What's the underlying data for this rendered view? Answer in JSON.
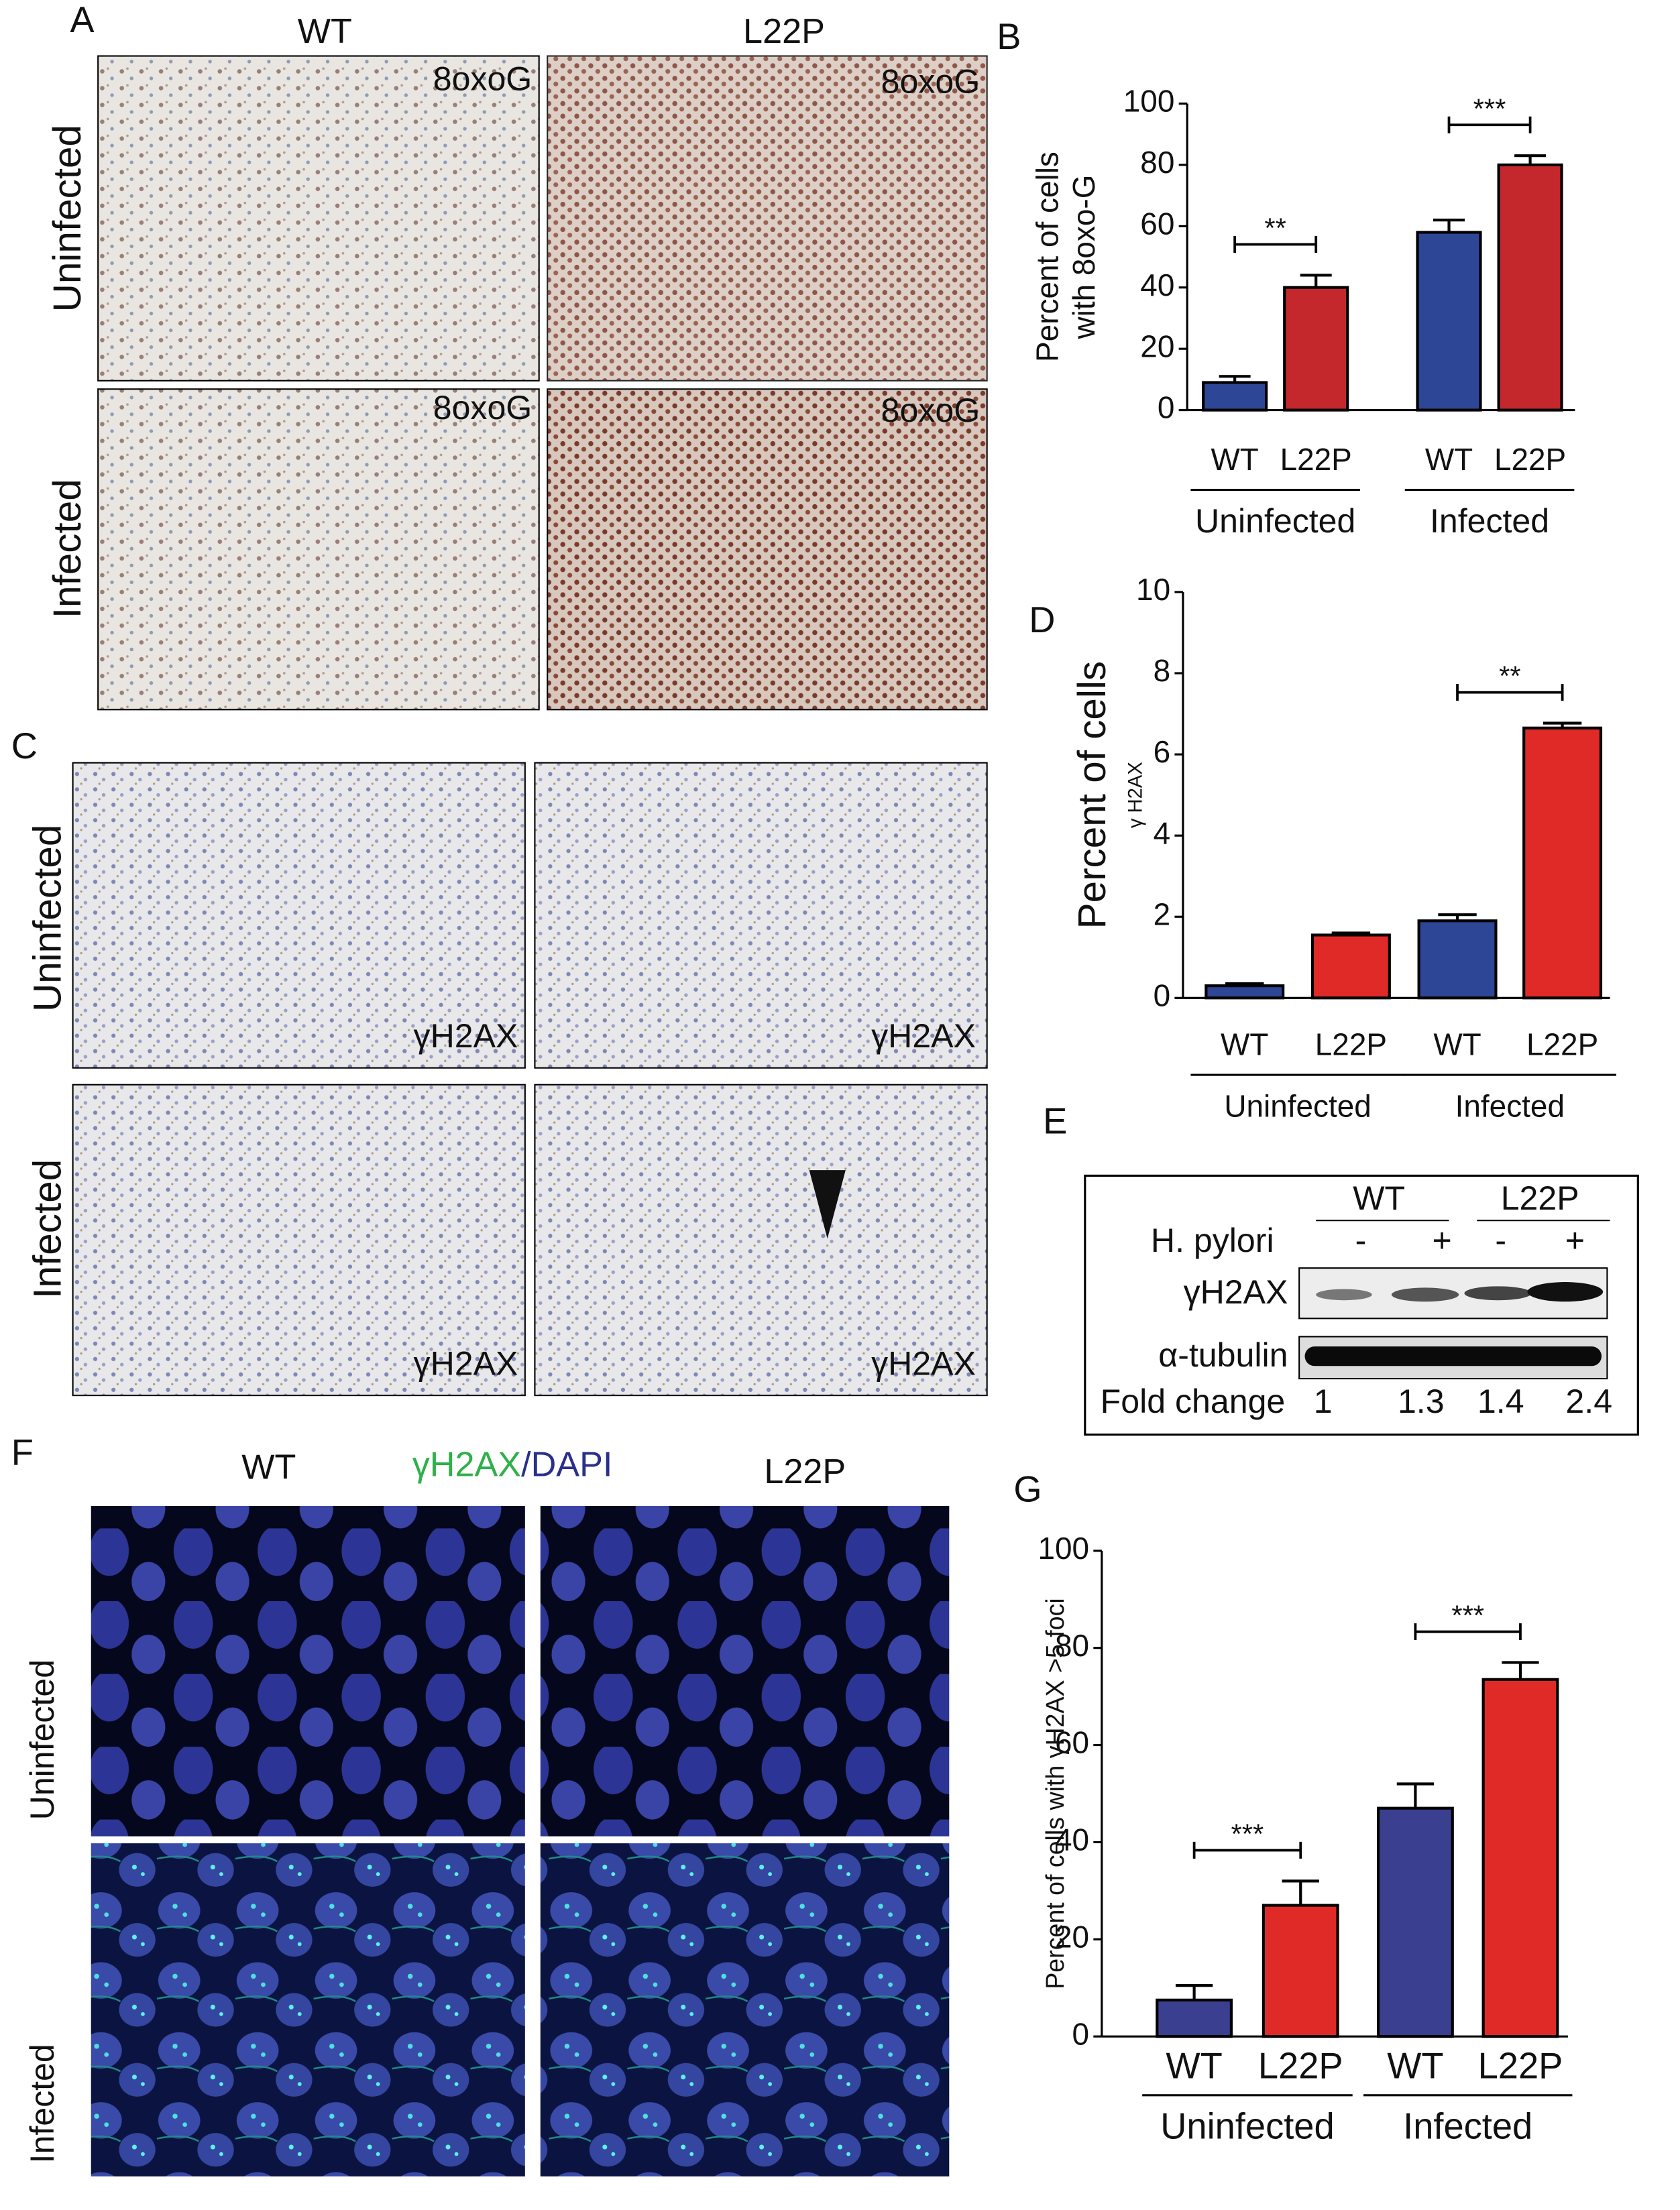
{
  "panel_labels": [
    "A",
    "B",
    "C",
    "D",
    "E",
    "F",
    "G"
  ],
  "panel_a": {
    "columns": [
      "WT",
      "L22P"
    ],
    "rows": [
      "Uninfected",
      "Infected"
    ],
    "stain_labels": [
      "8oxoG",
      "8oxoG",
      "8oxoG",
      "8oxoG"
    ]
  },
  "panel_c": {
    "rows": [
      "Uninfected",
      "Infected"
    ],
    "stain_labels": [
      "γH2AX",
      "γH2AX",
      "γH2AX",
      "γH2AX"
    ]
  },
  "panel_e": {
    "genotypes": [
      "WT",
      "L22P"
    ],
    "treatment": "H. pylori",
    "treatment_states": [
      "-",
      "+",
      "-",
      "+"
    ],
    "rows": [
      "γH2AX",
      "α-tubulin"
    ],
    "fold_change_label": "Fold change",
    "fold_change": [
      1,
      1.3,
      1.4,
      2.4
    ]
  },
  "panel_f": {
    "columns": [
      "WT",
      "L22P"
    ],
    "stain": [
      "γH2AX",
      "/DAPI"
    ],
    "rows": [
      "Uninfected",
      "Infected"
    ]
  },
  "chart_data": [
    {
      "type": "bar",
      "ylabel": [
        "Percent of cells",
        "with 8oxo-G"
      ],
      "categories": [
        "WT",
        "L22P",
        "WT",
        "L22P"
      ],
      "groups": [
        "Uninfected",
        "Infected"
      ],
      "values": [
        9,
        40,
        58,
        80
      ],
      "errors": [
        2,
        4,
        4,
        3
      ],
      "colors": [
        "#2e4696",
        "#c4282c",
        "#2e4696",
        "#c4282c"
      ],
      "ylim": [
        0,
        100
      ],
      "yticks": [
        0,
        20,
        40,
        60,
        80,
        100
      ],
      "significance": [
        "**",
        "***"
      ]
    },
    {
      "type": "bar",
      "ylabel": [
        "Percent of cells",
        "γ H2AX"
      ],
      "categories": [
        "WT",
        "L22P",
        "WT",
        "L22P"
      ],
      "groups": [
        "Uninfected",
        "Infected"
      ],
      "values": [
        0.3,
        1.55,
        1.9,
        6.65
      ],
      "errors": [
        0.05,
        0.05,
        0.15,
        0.12
      ],
      "colors": [
        "#2e4696",
        "#e02a27",
        "#2e4696",
        "#e02a27"
      ],
      "ylim": [
        0,
        10
      ],
      "yticks": [
        0,
        2,
        4,
        6,
        8,
        10
      ],
      "significance": [
        null,
        "**"
      ]
    },
    {
      "type": "bar",
      "ylabel": [
        "Percent of cells with  γH2AX >5 foci"
      ],
      "categories": [
        "WT",
        "L22P",
        "WT",
        "L22P"
      ],
      "groups": [
        "Uninfected",
        "Infected"
      ],
      "values": [
        7.5,
        27,
        47,
        73.5
      ],
      "errors": [
        3,
        5,
        5,
        3.5
      ],
      "colors": [
        "#3a3f8f",
        "#e02a27",
        "#3a3f8f",
        "#e02a27"
      ],
      "ylim": [
        0,
        100
      ],
      "yticks": [
        0,
        20,
        40,
        60,
        80,
        100
      ],
      "significance": [
        "***",
        "***"
      ]
    }
  ]
}
